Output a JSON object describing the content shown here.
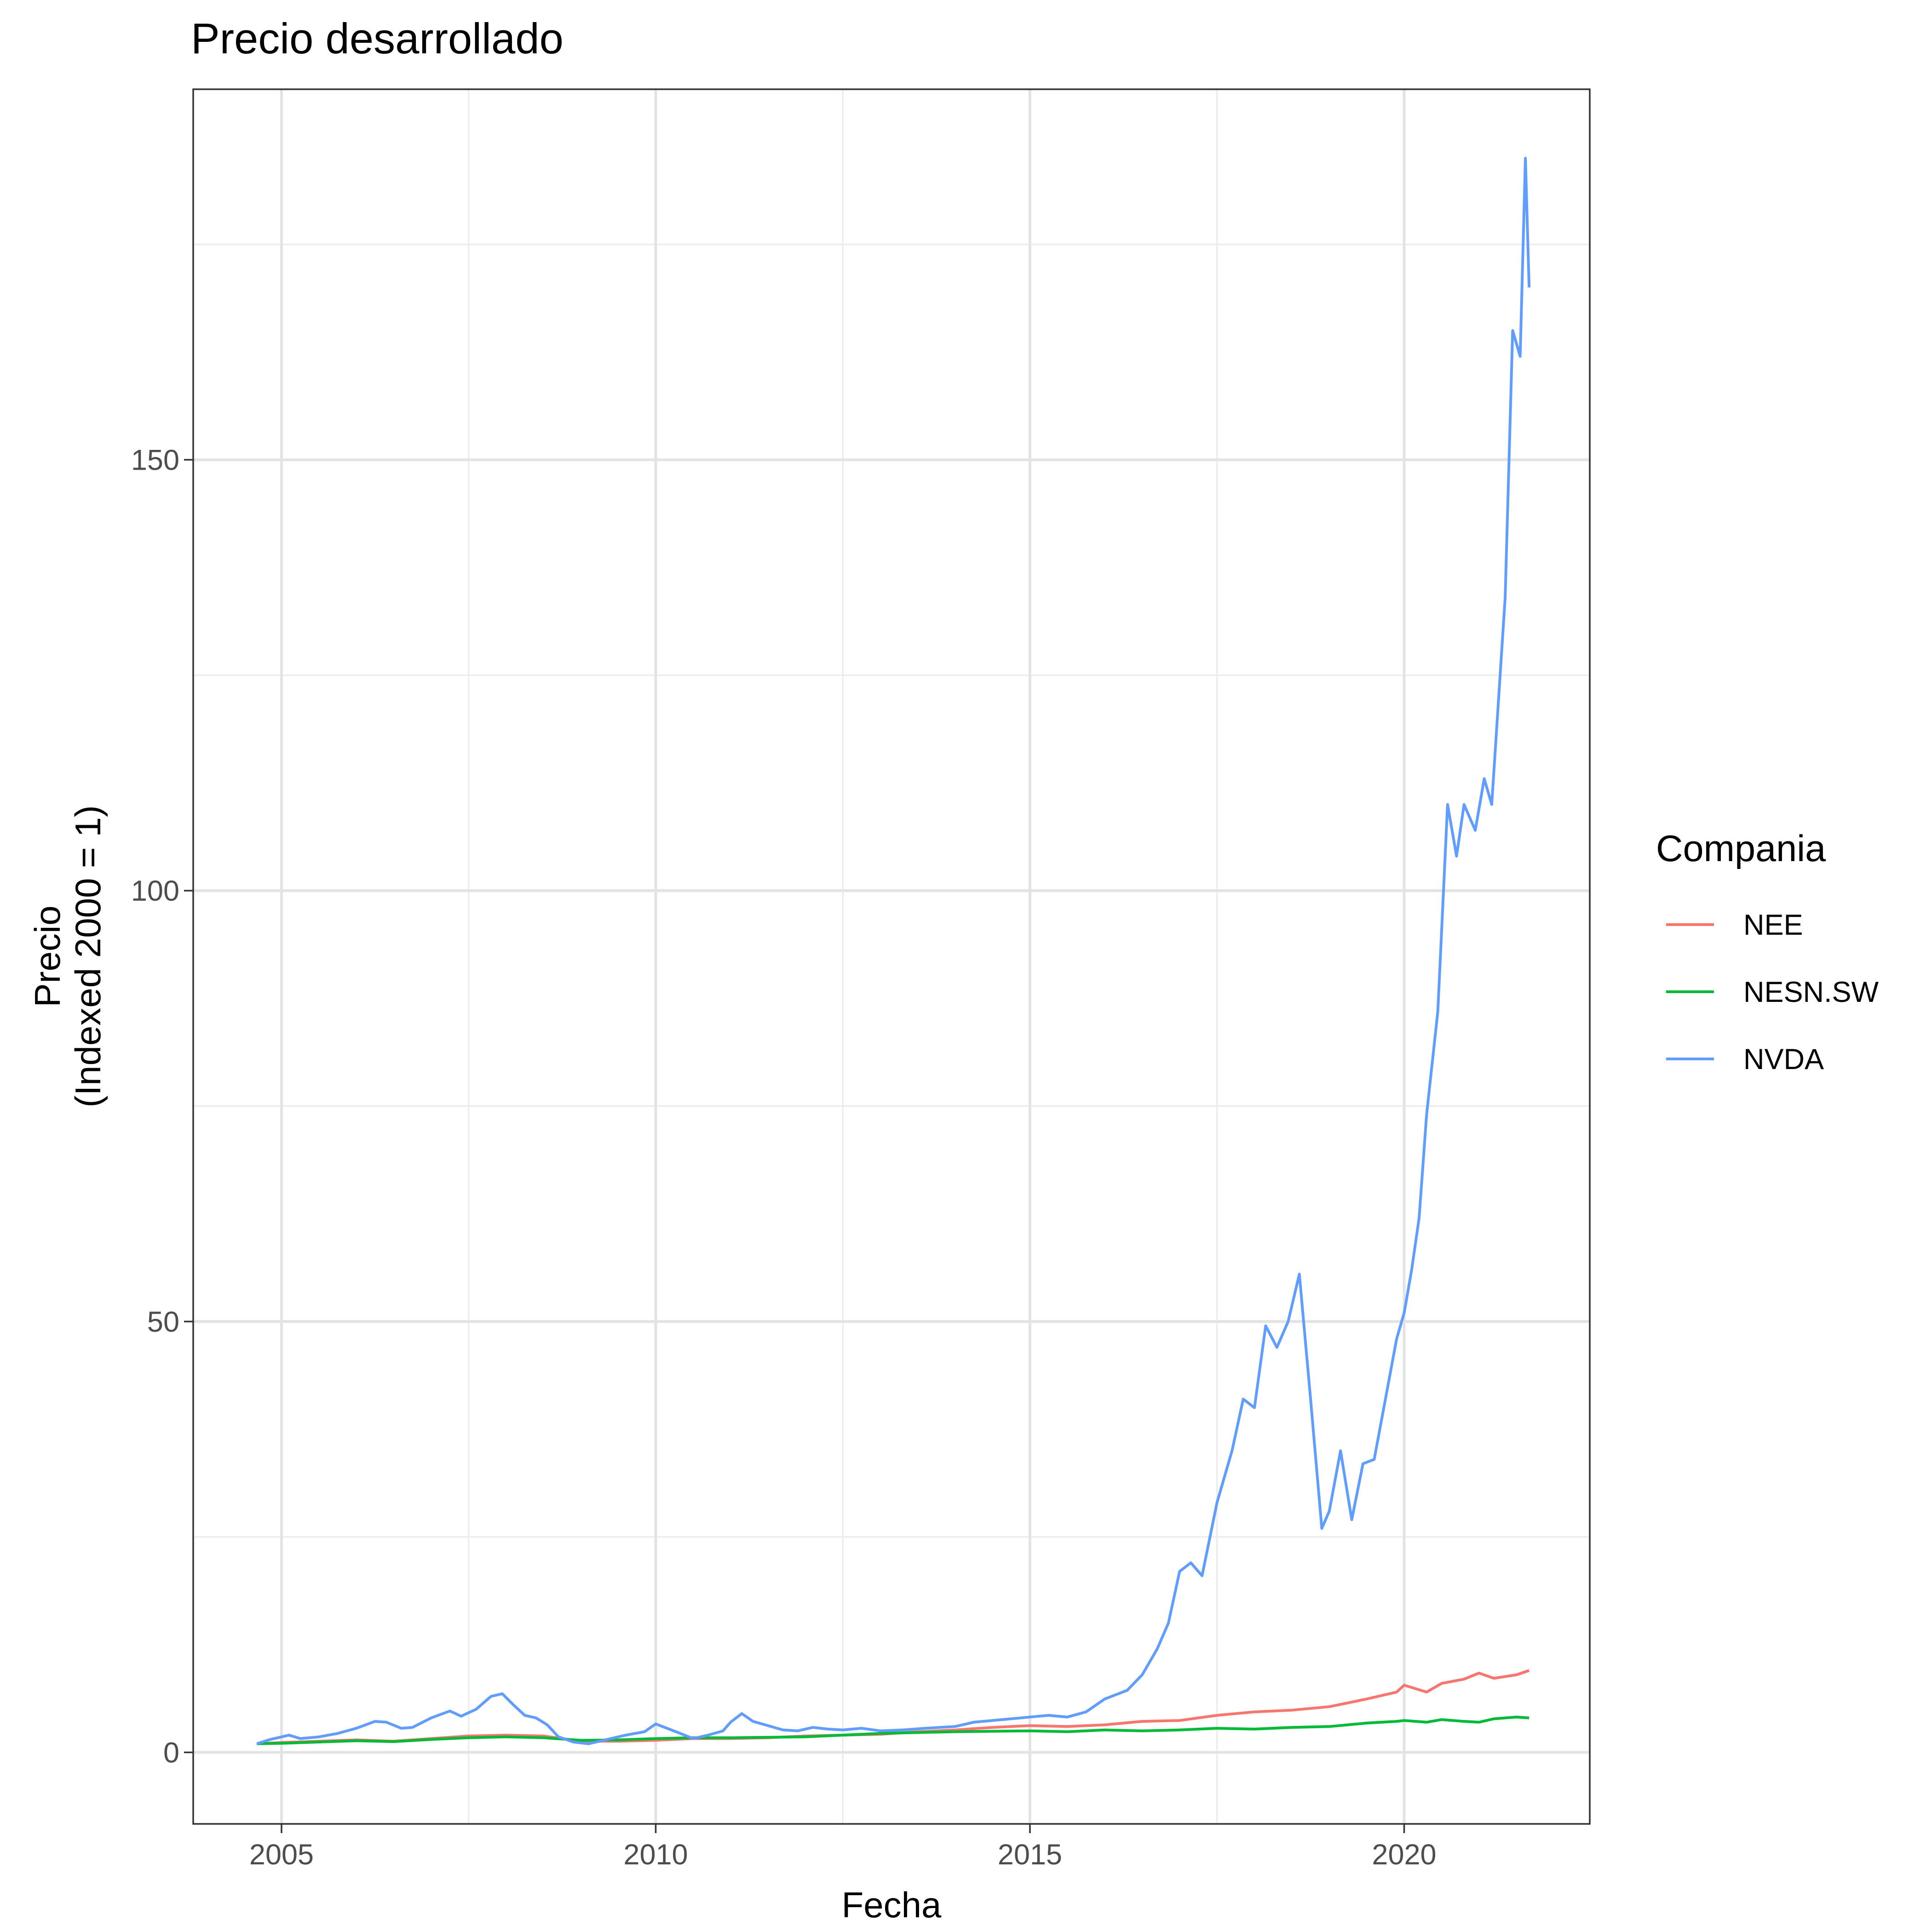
{
  "chart_data": {
    "type": "line",
    "title": "Precio desarrollado",
    "xlabel": "Fecha",
    "ylabel_lines": [
      "Precio",
      "(Indexed 2000 = 1)"
    ],
    "x_ticks": [
      2005,
      2010,
      2015,
      2020
    ],
    "y_ticks": [
      0,
      50,
      100,
      150
    ],
    "xlim": [
      2003.82,
      2022.48
    ],
    "ylim": [
      -8.3,
      193.0
    ],
    "grid": true,
    "legend_title": "Compania",
    "legend_position": "right",
    "series": [
      {
        "name": "NEE",
        "color": "#F8766D",
        "points": [
          [
            2004.67,
            1.0
          ],
          [
            2005.0,
            1.15
          ],
          [
            2005.5,
            1.3
          ],
          [
            2006.0,
            1.45
          ],
          [
            2006.5,
            1.3
          ],
          [
            2007.0,
            1.6
          ],
          [
            2007.5,
            1.9
          ],
          [
            2008.0,
            2.0
          ],
          [
            2008.5,
            1.9
          ],
          [
            2009.0,
            1.3
          ],
          [
            2009.5,
            1.3
          ],
          [
            2010.0,
            1.4
          ],
          [
            2010.5,
            1.6
          ],
          [
            2011.0,
            1.6
          ],
          [
            2011.5,
            1.7
          ],
          [
            2012.0,
            1.9
          ],
          [
            2012.5,
            2.0
          ],
          [
            2013.0,
            2.1
          ],
          [
            2013.5,
            2.4
          ],
          [
            2014.0,
            2.6
          ],
          [
            2014.5,
            2.9
          ],
          [
            2015.0,
            3.1
          ],
          [
            2015.5,
            3.0
          ],
          [
            2016.0,
            3.2
          ],
          [
            2016.5,
            3.6
          ],
          [
            2017.0,
            3.7
          ],
          [
            2017.5,
            4.3
          ],
          [
            2018.0,
            4.7
          ],
          [
            2018.5,
            4.9
          ],
          [
            2019.0,
            5.3
          ],
          [
            2019.5,
            6.2
          ],
          [
            2019.9,
            7.0
          ],
          [
            2020.0,
            7.8
          ],
          [
            2020.3,
            7.0
          ],
          [
            2020.5,
            8.0
          ],
          [
            2020.8,
            8.5
          ],
          [
            2021.0,
            9.2
          ],
          [
            2021.2,
            8.6
          ],
          [
            2021.5,
            9.0
          ],
          [
            2021.67,
            9.5
          ]
        ]
      },
      {
        "name": "NESN.SW",
        "color": "#00BA38",
        "points": [
          [
            2004.67,
            1.0
          ],
          [
            2005.0,
            1.05
          ],
          [
            2005.5,
            1.2
          ],
          [
            2006.0,
            1.35
          ],
          [
            2006.5,
            1.25
          ],
          [
            2007.0,
            1.5
          ],
          [
            2007.5,
            1.7
          ],
          [
            2008.0,
            1.8
          ],
          [
            2008.5,
            1.7
          ],
          [
            2009.0,
            1.4
          ],
          [
            2009.5,
            1.45
          ],
          [
            2010.0,
            1.6
          ],
          [
            2010.5,
            1.7
          ],
          [
            2011.0,
            1.7
          ],
          [
            2011.5,
            1.75
          ],
          [
            2012.0,
            1.8
          ],
          [
            2012.5,
            2.0
          ],
          [
            2013.0,
            2.2
          ],
          [
            2013.5,
            2.3
          ],
          [
            2014.0,
            2.4
          ],
          [
            2014.5,
            2.45
          ],
          [
            2015.0,
            2.5
          ],
          [
            2015.5,
            2.4
          ],
          [
            2016.0,
            2.6
          ],
          [
            2016.5,
            2.5
          ],
          [
            2017.0,
            2.6
          ],
          [
            2017.5,
            2.8
          ],
          [
            2018.0,
            2.7
          ],
          [
            2018.5,
            2.9
          ],
          [
            2019.0,
            3.0
          ],
          [
            2019.5,
            3.4
          ],
          [
            2019.9,
            3.6
          ],
          [
            2020.0,
            3.7
          ],
          [
            2020.3,
            3.5
          ],
          [
            2020.5,
            3.8
          ],
          [
            2020.8,
            3.6
          ],
          [
            2021.0,
            3.5
          ],
          [
            2021.2,
            3.9
          ],
          [
            2021.5,
            4.1
          ],
          [
            2021.67,
            4.0
          ]
        ]
      },
      {
        "name": "NVDA",
        "color": "#619CFF",
        "points": [
          [
            2004.67,
            1.0
          ],
          [
            2004.85,
            1.5
          ],
          [
            2005.0,
            1.8
          ],
          [
            2005.1,
            2.0
          ],
          [
            2005.25,
            1.6
          ],
          [
            2005.5,
            1.8
          ],
          [
            2005.75,
            2.2
          ],
          [
            2006.0,
            2.8
          ],
          [
            2006.25,
            3.6
          ],
          [
            2006.4,
            3.5
          ],
          [
            2006.6,
            2.8
          ],
          [
            2006.75,
            2.9
          ],
          [
            2007.0,
            4.0
          ],
          [
            2007.25,
            4.8
          ],
          [
            2007.4,
            4.2
          ],
          [
            2007.6,
            5.0
          ],
          [
            2007.8,
            6.5
          ],
          [
            2007.95,
            6.8
          ],
          [
            2008.1,
            5.5
          ],
          [
            2008.25,
            4.3
          ],
          [
            2008.4,
            4.0
          ],
          [
            2008.55,
            3.2
          ],
          [
            2008.7,
            1.8
          ],
          [
            2008.9,
            1.2
          ],
          [
            2009.1,
            1.0
          ],
          [
            2009.35,
            1.5
          ],
          [
            2009.6,
            2.0
          ],
          [
            2009.85,
            2.4
          ],
          [
            2010.0,
            3.3
          ],
          [
            2010.15,
            2.8
          ],
          [
            2010.3,
            2.3
          ],
          [
            2010.5,
            1.6
          ],
          [
            2010.7,
            2.0
          ],
          [
            2010.9,
            2.5
          ],
          [
            2011.0,
            3.5
          ],
          [
            2011.15,
            4.5
          ],
          [
            2011.3,
            3.6
          ],
          [
            2011.5,
            3.1
          ],
          [
            2011.7,
            2.6
          ],
          [
            2011.9,
            2.5
          ],
          [
            2012.1,
            2.9
          ],
          [
            2012.3,
            2.7
          ],
          [
            2012.5,
            2.6
          ],
          [
            2012.75,
            2.8
          ],
          [
            2013.0,
            2.5
          ],
          [
            2013.3,
            2.6
          ],
          [
            2013.6,
            2.8
          ],
          [
            2014.0,
            3.0
          ],
          [
            2014.25,
            3.5
          ],
          [
            2014.5,
            3.7
          ],
          [
            2014.75,
            3.9
          ],
          [
            2015.0,
            4.1
          ],
          [
            2015.25,
            4.3
          ],
          [
            2015.5,
            4.1
          ],
          [
            2015.75,
            4.7
          ],
          [
            2016.0,
            6.2
          ],
          [
            2016.15,
            6.7
          ],
          [
            2016.3,
            7.2
          ],
          [
            2016.5,
            9.0
          ],
          [
            2016.7,
            12.0
          ],
          [
            2016.85,
            15.0
          ],
          [
            2017.0,
            21.0
          ],
          [
            2017.15,
            22.0
          ],
          [
            2017.3,
            20.5
          ],
          [
            2017.5,
            29.0
          ],
          [
            2017.7,
            35.0
          ],
          [
            2017.85,
            41.0
          ],
          [
            2018.0,
            40.0
          ],
          [
            2018.15,
            49.5
          ],
          [
            2018.3,
            47.0
          ],
          [
            2018.45,
            50.0
          ],
          [
            2018.6,
            55.5
          ],
          [
            2018.75,
            41.0
          ],
          [
            2018.9,
            26.0
          ],
          [
            2019.0,
            28.0
          ],
          [
            2019.15,
            35.0
          ],
          [
            2019.3,
            27.0
          ],
          [
            2019.45,
            33.5
          ],
          [
            2019.6,
            34.0
          ],
          [
            2019.75,
            41.0
          ],
          [
            2019.9,
            48.0
          ],
          [
            2020.0,
            51.0
          ],
          [
            2020.1,
            56.0
          ],
          [
            2020.2,
            62.0
          ],
          [
            2020.3,
            74.0
          ],
          [
            2020.45,
            86.0
          ],
          [
            2020.58,
            110.0
          ],
          [
            2020.7,
            104.0
          ],
          [
            2020.8,
            110.0
          ],
          [
            2020.95,
            107.0
          ],
          [
            2021.07,
            113.0
          ],
          [
            2021.17,
            110.0
          ],
          [
            2021.35,
            134.0
          ],
          [
            2021.45,
            165.0
          ],
          [
            2021.55,
            162.0
          ],
          [
            2021.62,
            185.0
          ],
          [
            2021.67,
            170.0
          ]
        ]
      }
    ]
  }
}
